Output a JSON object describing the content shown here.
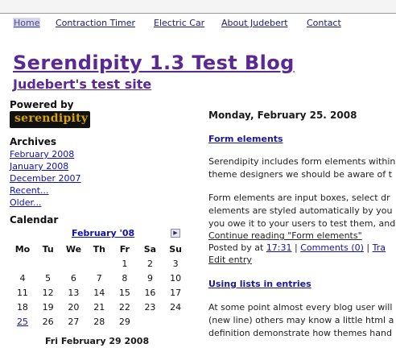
{
  "nav": [
    "Home",
    "Contraction Timer",
    "Electric Car",
    "About Judebert",
    "Contact"
  ],
  "header": {
    "title": "Serendipity 1.3 Test Blog",
    "subtitle": "Judebert's test site"
  },
  "sidebar": {
    "powered_label": "Powered by",
    "logo_text": "serendipity",
    "archives_label": "Archives",
    "archives": [
      "February 2008",
      "January 2008",
      "December 2007",
      "Recent...",
      "Older..."
    ],
    "calendar_label": "Calendar",
    "calendar": {
      "month": "February '08",
      "next_icon": "next-month-icon",
      "days": [
        "Mo",
        "Tu",
        "We",
        "Th",
        "Fr",
        "Sa",
        "Su"
      ],
      "weeks": [
        [
          "",
          "",
          "",
          "",
          "1",
          "2",
          "3"
        ],
        [
          "4",
          "5",
          "6",
          "7",
          "8",
          "9",
          "10"
        ],
        [
          "11",
          "12",
          "13",
          "14",
          "15",
          "16",
          "17"
        ],
        [
          "18",
          "19",
          "20",
          "21",
          "22",
          "23",
          "24"
        ],
        [
          "25",
          "26",
          "27",
          "28",
          "29",
          "",
          ""
        ]
      ],
      "linked_day": "25",
      "caption": "Fri February 29 2008"
    }
  },
  "main": {
    "date_header": "Monday, February 25. 2008",
    "entry1": {
      "title": "Form elements",
      "lines": [
        "Serendipity includes form elements within",
        "theme designers we should be aware of t",
        "",
        "Form elements are input boxes, select dr",
        "elements are styled automatically by you",
        "you owe it to your users to test them, and"
      ],
      "continue": "Continue reading \"Form elements\"",
      "posted_by": "Posted by at",
      "time": "17:31",
      "comments": "Comments (0)",
      "trackbacks": "Tra",
      "edit": "Edit entry"
    },
    "entry2": {
      "title": "Using lists in entries",
      "lines": [
        "At some point almost every blog user will",
        "(new line) others may know a little html a",
        "definition demonstrate how themes hand"
      ]
    }
  }
}
